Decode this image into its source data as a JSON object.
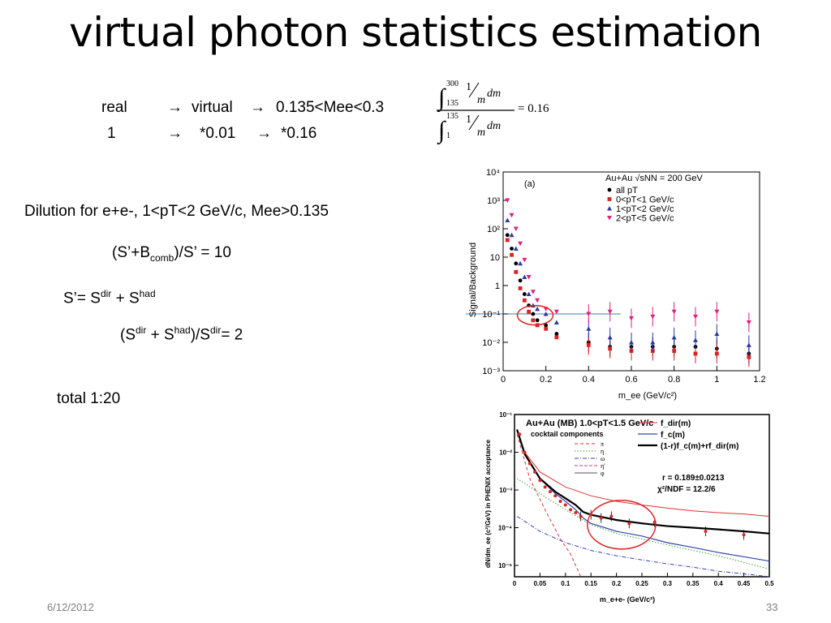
{
  "slide": {
    "title": "virtual photon statistics estimation",
    "row1": {
      "a": "real",
      "arrow1": "→",
      "b": "virtual",
      "arrow2": "→",
      "c": "0.135<Mee<0.3"
    },
    "row2": {
      "a": "1",
      "arrow1": "→",
      "b": "*0.01",
      "arrow2": "→",
      "c": "*0.16"
    },
    "formula": {
      "upper1": "300",
      "lower1": "135",
      "upper2": "135",
      "lower2": "1",
      "one": "1",
      "m": "m",
      "dm": "dm",
      "result": "= 0.16"
    },
    "dilution": "Dilution for e+e-, 1<pT<2 GeV/c, Mee>0.135",
    "eq1": {
      "pre": "(S’+B",
      "sub": "comb",
      "post": ")/S’ = 10"
    },
    "eq2": {
      "pre": "S’= S",
      "sup1": "dir",
      "mid": " + S",
      "sup2": "had"
    },
    "eq3": {
      "pre": "(S",
      "sup1": "dir",
      "mid": " + S",
      "sup2": "had",
      "mid2": ")/S",
      "sup3": "dir",
      "post": "= 2"
    },
    "total": "total 1:20",
    "date": "6/12/2012",
    "page_number": "33"
  },
  "chart_data": [
    {
      "type": "scatter",
      "panel_label": "(a)",
      "xlabel": "m_ee (GeV/c²)",
      "ylabel": "Signal/Background",
      "xlim": [
        0,
        1.2
      ],
      "ylim": [
        0.001,
        10000
      ],
      "log_y": true,
      "x_ticks": [
        "0",
        "0.2",
        "0.4",
        "0.6",
        "0.8",
        "1",
        "1.2"
      ],
      "y_ticks": [
        "10⁻³",
        "10⁻²",
        "10⁻¹",
        "1",
        "10",
        "10²",
        "10³",
        "10⁴"
      ],
      "legend_title": "Au+Au √sNN = 200 GeV",
      "legend": [
        "all pT",
        "0<pT<1 GeV/c",
        "1<pT<2 GeV/c",
        "2<pT<5 GeV/c"
      ],
      "series": [
        {
          "name": "all pT",
          "color": "#000000",
          "points": [
            [
              0.02,
              60
            ],
            [
              0.04,
              20
            ],
            [
              0.06,
              6
            ],
            [
              0.08,
              1.5
            ],
            [
              0.1,
              0.5
            ],
            [
              0.12,
              0.2
            ],
            [
              0.14,
              0.1
            ],
            [
              0.16,
              0.06
            ],
            [
              0.2,
              0.04
            ],
            [
              0.25,
              0.02
            ],
            [
              0.4,
              0.01
            ],
            [
              0.5,
              0.007
            ],
            [
              0.6,
              0.007
            ],
            [
              0.7,
              0.007
            ],
            [
              0.8,
              0.007
            ],
            [
              0.9,
              0.007
            ],
            [
              1.0,
              0.006
            ],
            [
              1.15,
              0.004
            ]
          ]
        },
        {
          "name": "0<pT<1 GeV/c",
          "color": "#dd2222",
          "points": [
            [
              0.02,
              40
            ],
            [
              0.04,
              12
            ],
            [
              0.06,
              3
            ],
            [
              0.08,
              0.8
            ],
            [
              0.1,
              0.3
            ],
            [
              0.12,
              0.12
            ],
            [
              0.14,
              0.06
            ],
            [
              0.16,
              0.04
            ],
            [
              0.2,
              0.03
            ],
            [
              0.25,
              0.015
            ],
            [
              0.4,
              0.008
            ],
            [
              0.5,
              0.006
            ],
            [
              0.6,
              0.005
            ],
            [
              0.7,
              0.005
            ],
            [
              0.8,
              0.005
            ],
            [
              0.9,
              0.004
            ],
            [
              1.0,
              0.004
            ],
            [
              1.15,
              0.003
            ]
          ]
        },
        {
          "name": "1<pT<2 GeV/c",
          "color": "#2b3aa0",
          "points": [
            [
              0.02,
              200
            ],
            [
              0.04,
              60
            ],
            [
              0.06,
              20
            ],
            [
              0.08,
              6
            ],
            [
              0.1,
              2
            ],
            [
              0.12,
              0.5
            ],
            [
              0.14,
              0.2
            ],
            [
              0.16,
              0.15
            ],
            [
              0.2,
              0.1
            ],
            [
              0.25,
              0.05
            ],
            [
              0.4,
              0.03
            ],
            [
              0.5,
              0.015
            ],
            [
              0.6,
              0.01
            ],
            [
              0.7,
              0.01
            ],
            [
              0.8,
              0.015
            ],
            [
              0.9,
              0.012
            ],
            [
              1.0,
              0.02
            ],
            [
              1.15,
              0.008
            ]
          ]
        },
        {
          "name": "2<pT<5 GeV/c",
          "color": "#e0207a",
          "points": [
            [
              0.02,
              1000
            ],
            [
              0.04,
              300
            ],
            [
              0.06,
              100
            ],
            [
              0.08,
              30
            ],
            [
              0.1,
              8
            ],
            [
              0.12,
              2
            ],
            [
              0.14,
              0.6
            ],
            [
              0.16,
              0.3
            ],
            [
              0.2,
              0.15
            ],
            [
              0.25,
              0.12
            ],
            [
              0.4,
              0.1
            ],
            [
              0.5,
              0.12
            ],
            [
              0.6,
              0.07
            ],
            [
              0.7,
              0.08
            ],
            [
              0.8,
              0.12
            ],
            [
              0.9,
              0.08
            ],
            [
              1.0,
              0.12
            ],
            [
              1.15,
              0.05
            ]
          ]
        }
      ],
      "reference_line_y": 0.1
    },
    {
      "type": "line",
      "title": "Au+Au (MB) 1.0<pT<1.5 GeV/c",
      "subtitle": "cocktail components",
      "xlabel": "m_e+e- (GeV/c²)",
      "ylabel": "dN/dm_ee (c²/GeV) in PHENIX acceptance",
      "xlim": [
        0,
        0.5
      ],
      "ylim": [
        5e-06,
        0.1
      ],
      "log_y": true,
      "x_ticks": [
        "0",
        "0.05",
        "0.1",
        "0.15",
        "0.2",
        "0.25",
        "0.3",
        "0.35",
        "0.4",
        "0.45",
        "0.5"
      ],
      "y_ticks": [
        "10⁻⁵",
        "10⁻⁴",
        "10⁻³",
        "10⁻²",
        "10⁻¹"
      ],
      "cocktail_legend": [
        "π",
        "η",
        "ω",
        "η'",
        "φ"
      ],
      "fit_legend": [
        "f_dir(m)",
        "f_c(m)",
        "(1-r)f_c(m)+rf_dir(m)"
      ],
      "fit_result": "r = 0.189±0.0213",
      "chi2": "χ²/NDF = 12.2/6",
      "series": [
        {
          "name": "f_dir(m)",
          "color": "#dd3333",
          "x": [
            0.005,
            0.02,
            0.05,
            0.1,
            0.15,
            0.2,
            0.25,
            0.3,
            0.35,
            0.4,
            0.45,
            0.5
          ],
          "y": [
            0.04,
            0.01,
            0.003,
            0.0012,
            0.0007,
            0.0005,
            0.0004,
            0.00033,
            0.00028,
            0.00025,
            0.00023,
            0.0002
          ]
        },
        {
          "name": "f_c(m)",
          "color": "#3344aa",
          "x": [
            0.005,
            0.02,
            0.05,
            0.08,
            0.1,
            0.12,
            0.135,
            0.15,
            0.2,
            0.25,
            0.3,
            0.35,
            0.4,
            0.45,
            0.5
          ],
          "y": [
            0.04,
            0.009,
            0.002,
            0.0008,
            0.0005,
            0.0003,
            0.00018,
            0.00013,
            8e-05,
            6e-05,
            4e-05,
            3e-05,
            2.2e-05,
            1.7e-05,
            1.3e-05
          ]
        },
        {
          "name": "(1-r)f_c(m)+rf_dir(m)",
          "color": "#000000",
          "x": [
            0.005,
            0.02,
            0.05,
            0.08,
            0.1,
            0.12,
            0.135,
            0.15,
            0.2,
            0.25,
            0.3,
            0.35,
            0.4,
            0.45,
            0.5
          ],
          "y": [
            0.04,
            0.009,
            0.002,
            0.0009,
            0.0006,
            0.0004,
            0.00026,
            0.00022,
            0.00016,
            0.00013,
            0.00011,
            0.0001,
            9e-05,
            8e-05,
            7e-05
          ]
        },
        {
          "name": "π",
          "color": "#dd3333",
          "x": [
            0.005,
            0.03,
            0.06,
            0.09,
            0.11,
            0.12,
            0.13
          ],
          "y": [
            0.03,
            0.002,
            0.0003,
            5e-05,
            2e-05,
            1e-05,
            5e-06
          ]
        },
        {
          "name": "η",
          "color": "#33aa33",
          "x": [
            0.005,
            0.02,
            0.05,
            0.1,
            0.15,
            0.2,
            0.25,
            0.3,
            0.35,
            0.4,
            0.45,
            0.5
          ],
          "y": [
            0.002,
            0.0015,
            0.0008,
            0.0003,
            0.00012,
            7e-05,
            5e-05,
            3.5e-05,
            2.5e-05,
            1.8e-05,
            1.2e-05,
            8e-06
          ]
        },
        {
          "name": "ω",
          "color": "#3344aa",
          "x": [
            0.005,
            0.05,
            0.1,
            0.15,
            0.2,
            0.25,
            0.3,
            0.35,
            0.4,
            0.45,
            0.5
          ],
          "y": [
            0.0002,
            8e-05,
            4e-05,
            2.5e-05,
            1.8e-05,
            1.4e-05,
            1.1e-05,
            9e-06,
            7e-06,
            6e-06,
            5e-06
          ]
        }
      ],
      "data_points": {
        "x": [
          0.01,
          0.02,
          0.03,
          0.04,
          0.05,
          0.06,
          0.07,
          0.08,
          0.09,
          0.1,
          0.11,
          0.12,
          0.13,
          0.15,
          0.17,
          0.19,
          0.225,
          0.275,
          0.375,
          0.45
        ],
        "y": [
          0.03,
          0.01,
          0.005,
          0.003,
          0.0018,
          0.0012,
          0.0009,
          0.0007,
          0.0005,
          0.0004,
          0.0003,
          0.00025,
          0.0002,
          0.00022,
          0.00018,
          0.0002,
          0.00013,
          0.00014,
          8e-05,
          6.5e-05
        ]
      }
    }
  ]
}
